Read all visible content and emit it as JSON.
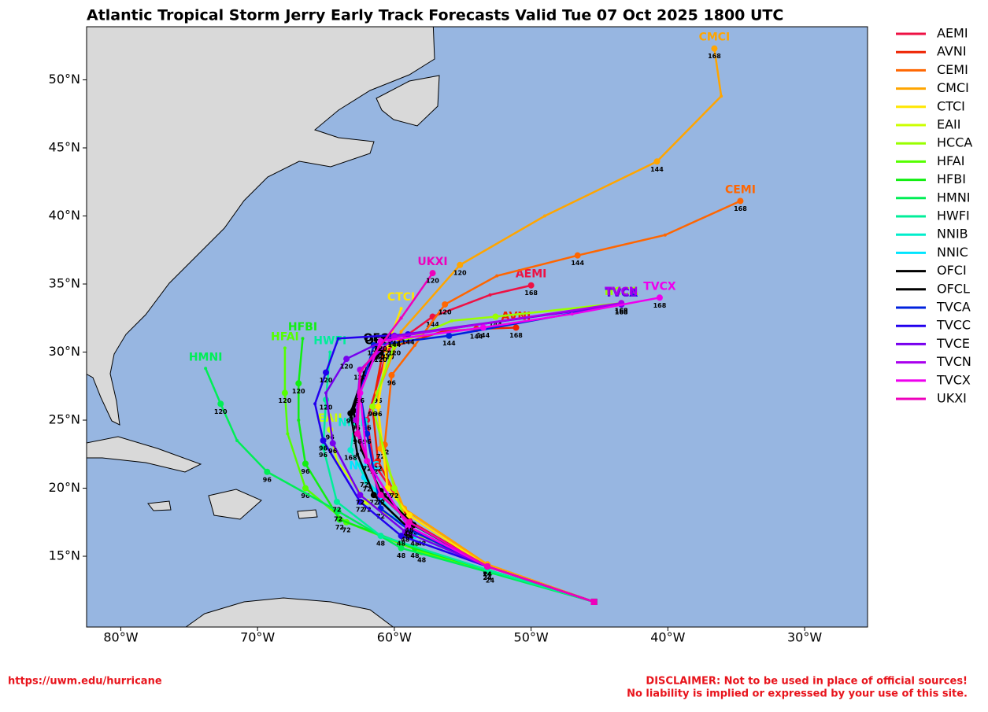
{
  "chart_data": {
    "type": "track_map",
    "title": "Atlantic Tropical Storm Jerry Early Track Forecasts Valid Tue 07 Oct 2025 1800 UTC",
    "xlim": [
      -82.5,
      -25.4
    ],
    "ylim": [
      9.8,
      53.9
    ],
    "xticks": [
      {
        "value": -80,
        "label": "80°W"
      },
      {
        "value": -70,
        "label": "70°W"
      },
      {
        "value": -60,
        "label": "60°W"
      },
      {
        "value": -50,
        "label": "50°W"
      },
      {
        "value": -40,
        "label": "40°W"
      },
      {
        "value": -30,
        "label": "30°W"
      }
    ],
    "yticks": [
      {
        "value": 15,
        "label": "15°N"
      },
      {
        "value": 20,
        "label": "20°N"
      },
      {
        "value": 25,
        "label": "25°N"
      },
      {
        "value": 30,
        "label": "30°N"
      },
      {
        "value": 35,
        "label": "35°N"
      },
      {
        "value": 40,
        "label": "40°N"
      },
      {
        "value": 45,
        "label": "45°N"
      },
      {
        "value": 50,
        "label": "50°N"
      }
    ],
    "legend": "outside-right",
    "series": [
      {
        "name": "AEMI",
        "color": "#ee1144",
        "lon": [
          -45.4,
          -53.2,
          -58.9,
          -61.5,
          -62.0,
          -60.5,
          -57.2,
          -53.0,
          -50.0
        ],
        "lat": [
          11.65,
          14.25,
          18.0,
          21.8,
          25.0,
          30.2,
          32.6,
          34.2,
          34.9
        ],
        "hours": [
          null,
          24,
          48,
          72,
          96,
          120,
          144,
          null,
          168
        ]
      },
      {
        "name": "AVNI",
        "color": "#ee2200",
        "lon": [
          -45.4,
          -53.2,
          -58.9,
          -61.2,
          -61.6,
          -60.8,
          -56.5,
          -54.0,
          -51.1
        ],
        "lat": [
          11.65,
          14.25,
          17.6,
          22.0,
          26.0,
          30.2,
          31.5,
          31.7,
          31.8
        ],
        "hours": [
          null,
          24,
          48,
          72,
          96,
          120,
          null,
          144,
          168
        ]
      },
      {
        "name": "CEMI",
        "color": "#ff6600",
        "lon": [
          -45.4,
          -53.2,
          -59.3,
          -60.5,
          -60.7,
          -60.2,
          -58.5,
          -56.3,
          -52.5,
          -46.6,
          -40.2,
          -34.7
        ],
        "lat": [
          11.65,
          14.4,
          18.5,
          20.5,
          23.2,
          28.3,
          30.5,
          33.5,
          35.6,
          37.1,
          38.6,
          41.1
        ],
        "hours": [
          null,
          24,
          48,
          null,
          72,
          96,
          null,
          120,
          null,
          144,
          null,
          168
        ]
      },
      {
        "name": "CMCI",
        "color": "#ffa500",
        "lon": [
          -45.4,
          -53.2,
          -59.3,
          -61.0,
          -61.2,
          -59.5,
          -55.2,
          -49.0,
          -40.8,
          -36.1,
          -36.6
        ],
        "lat": [
          11.65,
          14.4,
          18.5,
          22.9,
          27.0,
          31.5,
          36.4,
          40.0,
          44.0,
          48.8,
          52.3
        ],
        "hours": [
          null,
          24,
          48,
          72,
          96,
          null,
          120,
          null,
          144,
          null,
          168
        ]
      },
      {
        "name": "CTCI",
        "color": "#ffe600",
        "lon": [
          -45.4,
          -53.2,
          -58.9,
          -60.5,
          -61.2,
          -60.5,
          -59.5
        ],
        "lat": [
          11.65,
          14.25,
          18.0,
          20.0,
          26.0,
          30.5,
          33.2
        ],
        "hours": [
          null,
          24,
          48,
          72,
          96,
          120,
          null
        ]
      },
      {
        "name": "EAII",
        "color": "#ccff00",
        "lon": [
          -45.4,
          -53.2,
          -58.0,
          -62.0,
          -64.2,
          -64.7
        ],
        "lat": [
          11.65,
          14.25,
          16.5,
          19.0,
          22.0,
          24.3
        ],
        "hours": [
          null,
          24,
          48,
          72,
          null,
          96
        ]
      },
      {
        "name": "HCCA",
        "color": "#99ff00",
        "lon": [
          -45.4,
          -53.2,
          -59.0,
          -60.0,
          -61.6,
          -60.0,
          -55.8,
          -52.6,
          -43.4
        ],
        "lat": [
          11.65,
          14.25,
          17.0,
          20.0,
          26.0,
          30.5,
          32.3,
          32.6,
          33.6
        ],
        "hours": [
          null,
          24,
          48,
          72,
          96,
          120,
          null,
          144,
          168
        ]
      },
      {
        "name": "HFAI",
        "color": "#55ff00",
        "lon": [
          -45.4,
          -53.2,
          -58.0,
          -63.5,
          -66.5,
          -67.8,
          -68.0,
          -68.0
        ],
        "lat": [
          11.65,
          14.0,
          15.3,
          17.5,
          20.0,
          24.0,
          27.0,
          30.3
        ],
        "hours": [
          null,
          24,
          48,
          72,
          96,
          null,
          120,
          null
        ]
      },
      {
        "name": "HFBI",
        "color": "#11ee11",
        "lon": [
          -45.4,
          -53.2,
          -58.5,
          -64.0,
          -66.5,
          -67.0,
          -67.0,
          -66.7
        ],
        "lat": [
          11.65,
          14.0,
          15.6,
          17.7,
          21.8,
          25.0,
          27.7,
          31.0
        ],
        "hours": [
          null,
          24,
          48,
          72,
          96,
          null,
          120,
          null
        ]
      },
      {
        "name": "HMNI",
        "color": "#00ee55",
        "lon": [
          -45.4,
          -53.0,
          -59.5,
          -64.1,
          -69.3,
          -71.5,
          -72.7,
          -73.8
        ],
        "lat": [
          11.65,
          13.8,
          15.6,
          18.3,
          21.2,
          23.5,
          26.2,
          28.8
        ],
        "hours": [
          null,
          24,
          48,
          72,
          96,
          null,
          120,
          null
        ]
      },
      {
        "name": "HWFI",
        "color": "#00ee99",
        "lon": [
          -45.4,
          -53.2,
          -61.0,
          -64.2,
          -65.2,
          -65.0,
          -64.7
        ],
        "lat": [
          11.65,
          14.0,
          16.5,
          19.0,
          23.0,
          26.5,
          30.0
        ],
        "hours": [
          null,
          24,
          48,
          72,
          96,
          120,
          null
        ]
      },
      {
        "name": "NNIB",
        "color": "#00eecc",
        "lon": [
          -45.4,
          -53.2,
          -59.0,
          -62.0,
          -63.2,
          -63.0
        ],
        "lat": [
          11.65,
          14.25,
          17.5,
          20.5,
          22.8,
          24.0
        ],
        "hours": [
          null,
          24,
          48,
          72,
          168,
          null
        ]
      },
      {
        "name": "NNIC",
        "color": "#00e5ff",
        "lon": [
          -45.4,
          -53.2,
          -58.5,
          -60.0,
          -62.2
        ],
        "lat": [
          11.65,
          14.25,
          16.5,
          18.0,
          20.8
        ],
        "hours": [
          null,
          24,
          48,
          null,
          72
        ]
      },
      {
        "name": "OFCI",
        "color": "#000000",
        "lon": [
          -45.4,
          -53.2,
          -58.9,
          -61.5,
          -62.7,
          -63.2,
          -62.2,
          -61.2
        ],
        "lat": [
          11.65,
          14.25,
          17.0,
          19.5,
          22.5,
          25.5,
          28.5,
          30.2
        ],
        "hours": [
          null,
          24,
          48,
          72,
          null,
          96,
          null,
          120
        ]
      },
      {
        "name": "OFCL",
        "color": "#000000",
        "lon": [
          -45.4,
          -53.2,
          -58.6,
          -61.0,
          -62.4,
          -63.0,
          -62.0,
          -61.0
        ],
        "lat": [
          11.65,
          14.25,
          17.3,
          19.8,
          22.8,
          25.7,
          28.8,
          30.0
        ],
        "hours": [
          null,
          24,
          48,
          72,
          null,
          96,
          null,
          120
        ]
      },
      {
        "name": "TVCA",
        "color": "#0022dd",
        "lon": [
          -45.4,
          -53.2,
          -59.0,
          -61.0,
          -62.0,
          -62.5,
          -61.5,
          -56.0,
          -43.4
        ],
        "lat": [
          11.65,
          14.25,
          17.0,
          18.5,
          24.0,
          27.0,
          30.5,
          31.2,
          33.5
        ],
        "hours": [
          null,
          24,
          48,
          72,
          96,
          null,
          120,
          144,
          168
        ]
      },
      {
        "name": "TVCC",
        "color": "#2200ee",
        "lon": [
          -45.4,
          -53.2,
          -59.5,
          -62.5,
          -65.2,
          -65.8,
          -65.0,
          -64.1,
          -59.0,
          -43.4
        ],
        "lat": [
          11.65,
          14.25,
          16.5,
          19.0,
          23.5,
          26.2,
          28.5,
          31.0,
          31.3,
          33.5
        ],
        "hours": [
          null,
          24,
          48,
          72,
          96,
          null,
          120,
          null,
          144,
          168
        ]
      },
      {
        "name": "TVCE",
        "color": "#7700ee",
        "lon": [
          -45.4,
          -53.2,
          -59.2,
          -62.5,
          -64.5,
          -65.0,
          -63.5,
          -60.0,
          -43.4
        ],
        "lat": [
          11.65,
          14.25,
          16.8,
          19.5,
          23.3,
          27.0,
          29.5,
          31.2,
          33.5
        ],
        "hours": [
          null,
          24,
          48,
          72,
          96,
          null,
          120,
          144,
          168
        ]
      },
      {
        "name": "TVCN",
        "color": "#aa00ee",
        "lon": [
          -45.4,
          -53.2,
          -59.0,
          -62.0,
          -62.8,
          -62.5,
          -60.0,
          -43.4
        ],
        "lat": [
          11.65,
          14.25,
          17.2,
          22.0,
          25.0,
          28.7,
          31.1,
          33.6
        ],
        "hours": [
          null,
          24,
          48,
          72,
          96,
          120,
          144,
          168
        ]
      },
      {
        "name": "TVCX",
        "color": "#ee00ee",
        "lon": [
          -45.4,
          -53.2,
          -59.0,
          -62.0,
          -62.5,
          -61.0,
          -53.5,
          -47.0,
          -40.6
        ],
        "lat": [
          11.65,
          14.25,
          17.2,
          22.0,
          27.0,
          30.8,
          31.8,
          32.8,
          34.0
        ],
        "hours": [
          null,
          24,
          48,
          72,
          96,
          120,
          144,
          null,
          168
        ]
      },
      {
        "name": "UKXI",
        "color": "#ee00bb",
        "lon": [
          -45.4,
          -53.2,
          -58.9,
          -61.0,
          -62.7,
          -62.5,
          -59.5,
          -57.2
        ],
        "lat": [
          11.65,
          14.25,
          17.5,
          19.5,
          24.0,
          28.5,
          32.5,
          35.8
        ],
        "hours": [
          null,
          24,
          48,
          72,
          96,
          null,
          null,
          120
        ]
      }
    ]
  },
  "footer": {
    "url": "https://uwm.edu/hurricane",
    "disclaimer": [
      "DISCLAIMER: Not to be used in place of official sources!",
      "No liability is implied or expressed by your use of this site."
    ]
  }
}
